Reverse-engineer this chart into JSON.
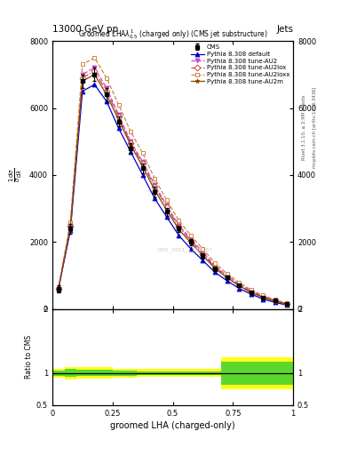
{
  "title_top": "13000 GeV pp",
  "title_right": "Jets",
  "main_title": "Groomed LHAλ$^1_{0.5}$ (charged only) (CMS jet substructure)",
  "xlabel": "groomed LHA (charged-only)",
  "ylabel_ratio": "Ratio to CMS",
  "right_label_top": "Rivet 3.1.10, ≥ 2.9M events",
  "right_label_bottom": "mcplots.cern.ch [arXiv:1306.3436]",
  "watermark": "CMS_2021_1786187",
  "x_bins": [
    0.0,
    0.05,
    0.1,
    0.15,
    0.2,
    0.25,
    0.3,
    0.35,
    0.4,
    0.45,
    0.5,
    0.55,
    0.6,
    0.65,
    0.7,
    0.75,
    0.8,
    0.85,
    0.9,
    0.95,
    1.0
  ],
  "cms_data": [
    600,
    2400,
    6800,
    7000,
    6400,
    5600,
    4800,
    4200,
    3500,
    2900,
    2400,
    2000,
    1600,
    1200,
    950,
    700,
    500,
    350,
    250,
    150
  ],
  "cms_errors": [
    100,
    150,
    200,
    200,
    200,
    150,
    150,
    150,
    150,
    120,
    100,
    100,
    80,
    70,
    60,
    50,
    40,
    30,
    20,
    15
  ],
  "pythia_default": [
    590,
    2350,
    6500,
    6700,
    6200,
    5400,
    4700,
    4000,
    3300,
    2750,
    2200,
    1800,
    1450,
    1100,
    850,
    620,
    450,
    300,
    200,
    120
  ],
  "pythia_au2": [
    600,
    2500,
    7000,
    7200,
    6600,
    5800,
    5000,
    4400,
    3700,
    3100,
    2500,
    2100,
    1700,
    1300,
    1000,
    750,
    540,
    380,
    260,
    160
  ],
  "pythia_au2lox": [
    610,
    2480,
    6900,
    7100,
    6500,
    5750,
    4950,
    4350,
    3650,
    3050,
    2450,
    2050,
    1650,
    1250,
    980,
    720,
    520,
    360,
    250,
    155
  ],
  "pythia_au2loxx": [
    620,
    2600,
    7300,
    7500,
    6900,
    6100,
    5300,
    4650,
    3900,
    3250,
    2650,
    2200,
    1800,
    1380,
    1060,
    800,
    580,
    410,
    280,
    175
  ],
  "pythia_au2m": [
    600,
    2450,
    6800,
    7000,
    6400,
    5650,
    4900,
    4250,
    3550,
    2950,
    2380,
    1980,
    1600,
    1220,
    940,
    700,
    500,
    350,
    240,
    150
  ],
  "ratio_green_lo": [
    0.96,
    0.94,
    0.95,
    0.95,
    0.95,
    0.96,
    0.96,
    0.97,
    0.97,
    0.97,
    0.97,
    0.97,
    0.97,
    0.97,
    0.82,
    0.82,
    0.82,
    0.82,
    0.82,
    0.82
  ],
  "ratio_green_hi": [
    1.04,
    1.06,
    1.05,
    1.05,
    1.05,
    1.04,
    1.04,
    1.03,
    1.03,
    1.03,
    1.03,
    1.03,
    1.03,
    1.03,
    1.18,
    1.18,
    1.18,
    1.18,
    1.18,
    1.18
  ],
  "ratio_yellow_lo": [
    0.93,
    0.9,
    0.91,
    0.91,
    0.91,
    0.93,
    0.93,
    0.94,
    0.94,
    0.94,
    0.94,
    0.94,
    0.94,
    0.94,
    0.75,
    0.75,
    0.75,
    0.75,
    0.75,
    0.75
  ],
  "ratio_yellow_hi": [
    1.07,
    1.1,
    1.09,
    1.09,
    1.09,
    1.07,
    1.07,
    1.06,
    1.06,
    1.06,
    1.06,
    1.06,
    1.06,
    1.06,
    1.25,
    1.25,
    1.25,
    1.25,
    1.25,
    1.25
  ],
  "color_default": "#0000cc",
  "color_au2": "#cc44cc",
  "color_au2lox": "#cc4444",
  "color_au2loxx": "#cc8844",
  "color_au2m": "#884400",
  "color_cms": "#000000",
  "ylim_main": [
    0,
    8000
  ],
  "ylim_ratio": [
    0.5,
    2.0
  ],
  "xlim": [
    0.0,
    1.0
  ],
  "yticks_main": [
    0,
    2000,
    4000,
    6000,
    8000
  ],
  "ytick_labels_main": [
    "0",
    "2000",
    "4000",
    "6000",
    "8000"
  ],
  "yticks_ratio": [
    0.5,
    1.0,
    2.0
  ],
  "ytick_labels_ratio": [
    "0.5",
    "1",
    "2"
  ],
  "xticks": [
    0.0,
    0.25,
    0.5,
    0.75,
    1.0
  ],
  "xtick_labels": [
    "0",
    "0.25",
    "0.5",
    "0.75",
    "1"
  ]
}
